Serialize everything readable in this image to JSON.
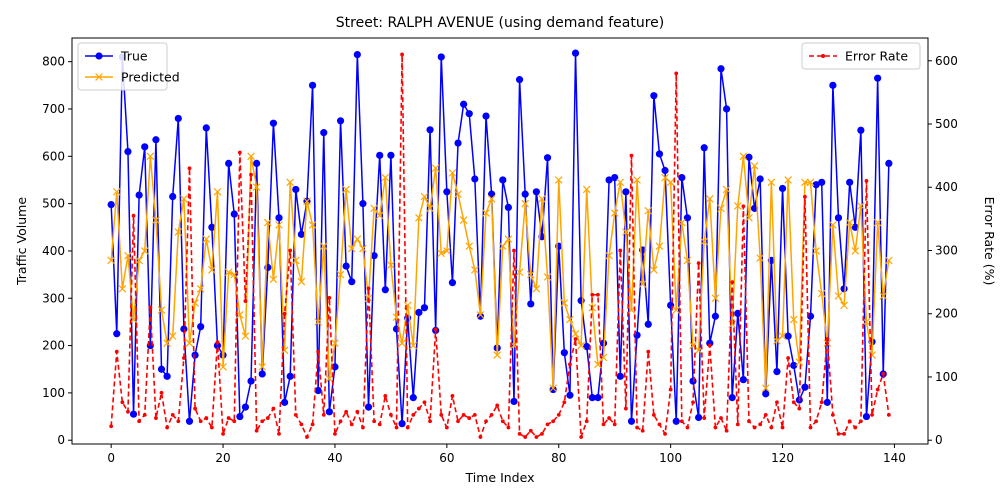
{
  "chart_data": {
    "type": "line",
    "title": "Street: RALPH AVENUE (using demand feature)",
    "xlabel": "Time Index",
    "ylabel_left": "Traffic Volume",
    "ylabel_right": "Error Rate (%)",
    "xlim": [
      -7,
      146
    ],
    "ylim_left": [
      -8,
      850
    ],
    "ylim_right": [
      -6,
      636
    ],
    "xticks": [
      0,
      20,
      40,
      60,
      80,
      100,
      120,
      140
    ],
    "yticks_left": [
      0,
      100,
      200,
      300,
      400,
      500,
      600,
      700,
      800
    ],
    "yticks_right": [
      0,
      100,
      200,
      300,
      400,
      500,
      600
    ],
    "legend_left": "top-left",
    "legend_right": "top-right",
    "colors": {
      "true": "#0000ff",
      "predicted": "#ffa500",
      "error": "#ff0000"
    },
    "series": [
      {
        "name": "True",
        "axis": "left",
        "x": [
          0,
          1,
          2,
          3,
          4,
          5,
          6,
          7,
          8,
          9,
          10,
          11,
          12,
          13,
          14,
          15,
          16,
          17,
          18,
          19,
          20,
          21,
          22,
          23,
          24,
          25,
          26,
          27,
          28,
          29,
          30,
          31,
          32,
          33,
          34,
          35,
          36,
          37,
          38,
          39,
          40,
          41,
          42,
          43,
          44,
          45,
          46,
          47,
          48,
          49,
          50,
          51,
          52,
          53,
          54,
          55,
          56,
          57,
          58,
          59,
          60,
          61,
          62,
          63,
          64,
          65,
          66,
          67,
          68,
          69,
          70,
          71,
          72,
          73,
          74,
          75,
          76,
          77,
          78,
          79,
          80,
          81,
          82,
          83,
          84,
          85,
          86,
          87,
          88,
          89,
          90,
          91,
          92,
          93,
          94,
          95,
          96,
          97,
          98,
          99,
          100,
          101,
          102,
          103,
          104,
          105,
          106,
          107,
          108,
          109,
          110,
          111,
          112,
          113,
          114,
          115,
          116,
          117,
          118,
          119,
          120,
          121,
          122,
          123,
          124,
          125,
          126,
          127,
          128,
          129,
          130,
          131,
          132,
          133,
          134,
          135,
          136,
          137,
          138,
          139
        ],
        "values": [
          498,
          225,
          810,
          610,
          55,
          518,
          620,
          200,
          635,
          150,
          135,
          515,
          680,
          235,
          40,
          180,
          240,
          660,
          450,
          200,
          180,
          585,
          478,
          50,
          70,
          125,
          585,
          140,
          365,
          670,
          470,
          80,
          135,
          530,
          435,
          505,
          750,
          105,
          650,
          60,
          155,
          675,
          368,
          335,
          815,
          500,
          70,
          390,
          602,
          318,
          602,
          235,
          35,
          258,
          90,
          270,
          280,
          656,
          232,
          810,
          525,
          333,
          628,
          710,
          690,
          552,
          262,
          685,
          520,
          195,
          550,
          492,
          82,
          762,
          520,
          288,
          525,
          430,
          597,
          107,
          410,
          185,
          95,
          818,
          295,
          198,
          90,
          90,
          205,
          550,
          555,
          135,
          525,
          40,
          222,
          402,
          245,
          728,
          605,
          570,
          285,
          40,
          555,
          470,
          125,
          48,
          618,
          205,
          262,
          785,
          700,
          90,
          268,
          128,
          598,
          490,
          552,
          98,
          380,
          145,
          532,
          220,
          158,
          85,
          112,
          262,
          540,
          545,
          80,
          750,
          470,
          320,
          545,
          450,
          655,
          50,
          208,
          765,
          140,
          585
        ]
      },
      {
        "name": "Predicted",
        "axis": "left",
        "x": [
          0,
          1,
          2,
          3,
          4,
          5,
          6,
          7,
          8,
          9,
          10,
          11,
          12,
          13,
          14,
          15,
          16,
          17,
          18,
          19,
          20,
          21,
          22,
          23,
          24,
          25,
          26,
          27,
          28,
          29,
          30,
          31,
          32,
          33,
          34,
          35,
          36,
          37,
          38,
          39,
          40,
          41,
          42,
          43,
          44,
          45,
          46,
          47,
          48,
          49,
          50,
          51,
          52,
          53,
          54,
          55,
          56,
          57,
          58,
          59,
          60,
          61,
          62,
          63,
          64,
          65,
          66,
          67,
          68,
          69,
          70,
          71,
          72,
          73,
          74,
          75,
          76,
          77,
          78,
          79,
          80,
          81,
          82,
          83,
          84,
          85,
          86,
          87,
          88,
          89,
          90,
          91,
          92,
          93,
          94,
          95,
          96,
          97,
          98,
          99,
          100,
          101,
          102,
          103,
          104,
          105,
          106,
          107,
          108,
          109,
          110,
          111,
          112,
          113,
          114,
          115,
          116,
          117,
          118,
          119,
          120,
          121,
          122,
          123,
          124,
          125,
          126,
          127,
          128,
          129,
          130,
          131,
          132,
          133,
          134,
          135,
          136,
          137,
          138,
          139
        ],
        "values": [
          380,
          525,
          320,
          390,
          255,
          380,
          400,
          600,
          465,
          275,
          205,
          220,
          440,
          510,
          205,
          290,
          320,
          425,
          360,
          525,
          155,
          355,
          350,
          265,
          220,
          600,
          535,
          155,
          460,
          340,
          455,
          190,
          545,
          380,
          335,
          505,
          455,
          250,
          410,
          130,
          205,
          350,
          530,
          405,
          425,
          405,
          300,
          490,
          475,
          555,
          370,
          260,
          205,
          285,
          200,
          470,
          515,
          490,
          575,
          395,
          400,
          565,
          520,
          465,
          410,
          360,
          265,
          480,
          510,
          180,
          410,
          425,
          200,
          355,
          500,
          350,
          320,
          510,
          345,
          110,
          550,
          290,
          255,
          225,
          200,
          530,
          280,
          160,
          175,
          390,
          480,
          545,
          440,
          275,
          550,
          330,
          485,
          360,
          410,
          555,
          545,
          275,
          460,
          380,
          200,
          190,
          420,
          510,
          300,
          490,
          530,
          245,
          495,
          600,
          470,
          580,
          385,
          110,
          545,
          210,
          220,
          550,
          255,
          165,
          545,
          545,
          400,
          310,
          205,
          455,
          305,
          285,
          460,
          400,
          495,
          250,
          180,
          460,
          305,
          380
        ]
      },
      {
        "name": "Error Rate",
        "axis": "right",
        "x": [
          0,
          1,
          2,
          3,
          4,
          5,
          6,
          7,
          8,
          9,
          10,
          11,
          12,
          13,
          14,
          15,
          16,
          17,
          18,
          19,
          20,
          21,
          22,
          23,
          24,
          25,
          26,
          27,
          28,
          29,
          30,
          31,
          32,
          33,
          34,
          35,
          36,
          37,
          38,
          39,
          40,
          41,
          42,
          43,
          44,
          45,
          46,
          47,
          48,
          49,
          50,
          51,
          52,
          53,
          54,
          55,
          56,
          57,
          58,
          59,
          60,
          61,
          62,
          63,
          64,
          65,
          66,
          67,
          68,
          69,
          70,
          71,
          72,
          73,
          74,
          75,
          76,
          77,
          78,
          79,
          80,
          81,
          82,
          83,
          84,
          85,
          86,
          87,
          88,
          89,
          90,
          91,
          92,
          93,
          94,
          95,
          96,
          97,
          98,
          99,
          100,
          101,
          102,
          103,
          104,
          105,
          106,
          107,
          108,
          109,
          110,
          111,
          112,
          113,
          114,
          115,
          116,
          117,
          118,
          119,
          120,
          121,
          122,
          123,
          124,
          125,
          126,
          127,
          128,
          129,
          130,
          131,
          132,
          133,
          134,
          135,
          136,
          137,
          138,
          139
        ],
        "values": [
          22,
          140,
          60,
          45,
          355,
          30,
          40,
          210,
          35,
          75,
          20,
          40,
          30,
          130,
          430,
          50,
          30,
          35,
          20,
          155,
          10,
          35,
          30,
          455,
          220,
          420,
          15,
          30,
          35,
          50,
          10,
          200,
          300,
          40,
          25,
          5,
          25,
          140,
          40,
          225,
          10,
          30,
          45,
          25,
          45,
          20,
          240,
          30,
          25,
          70,
          40,
          20,
          610,
          20,
          40,
          50,
          60,
          30,
          175,
          40,
          20,
          70,
          30,
          40,
          35,
          40,
          5,
          30,
          40,
          55,
          30,
          20,
          300,
          10,
          5,
          15,
          5,
          10,
          25,
          30,
          40,
          60,
          120,
          160,
          5,
          30,
          230,
          230,
          25,
          35,
          25,
          300,
          50,
          450,
          20,
          15,
          140,
          40,
          25,
          10,
          80,
          580,
          30,
          20,
          60,
          280,
          35,
          150,
          20,
          35,
          15,
          250,
          25,
          370,
          30,
          20,
          25,
          40,
          20,
          60,
          20,
          130,
          60,
          50,
          385,
          20,
          30,
          60,
          160,
          40,
          10,
          10,
          30,
          20,
          30,
          410,
          40,
          80,
          105,
          40
        ]
      }
    ]
  }
}
